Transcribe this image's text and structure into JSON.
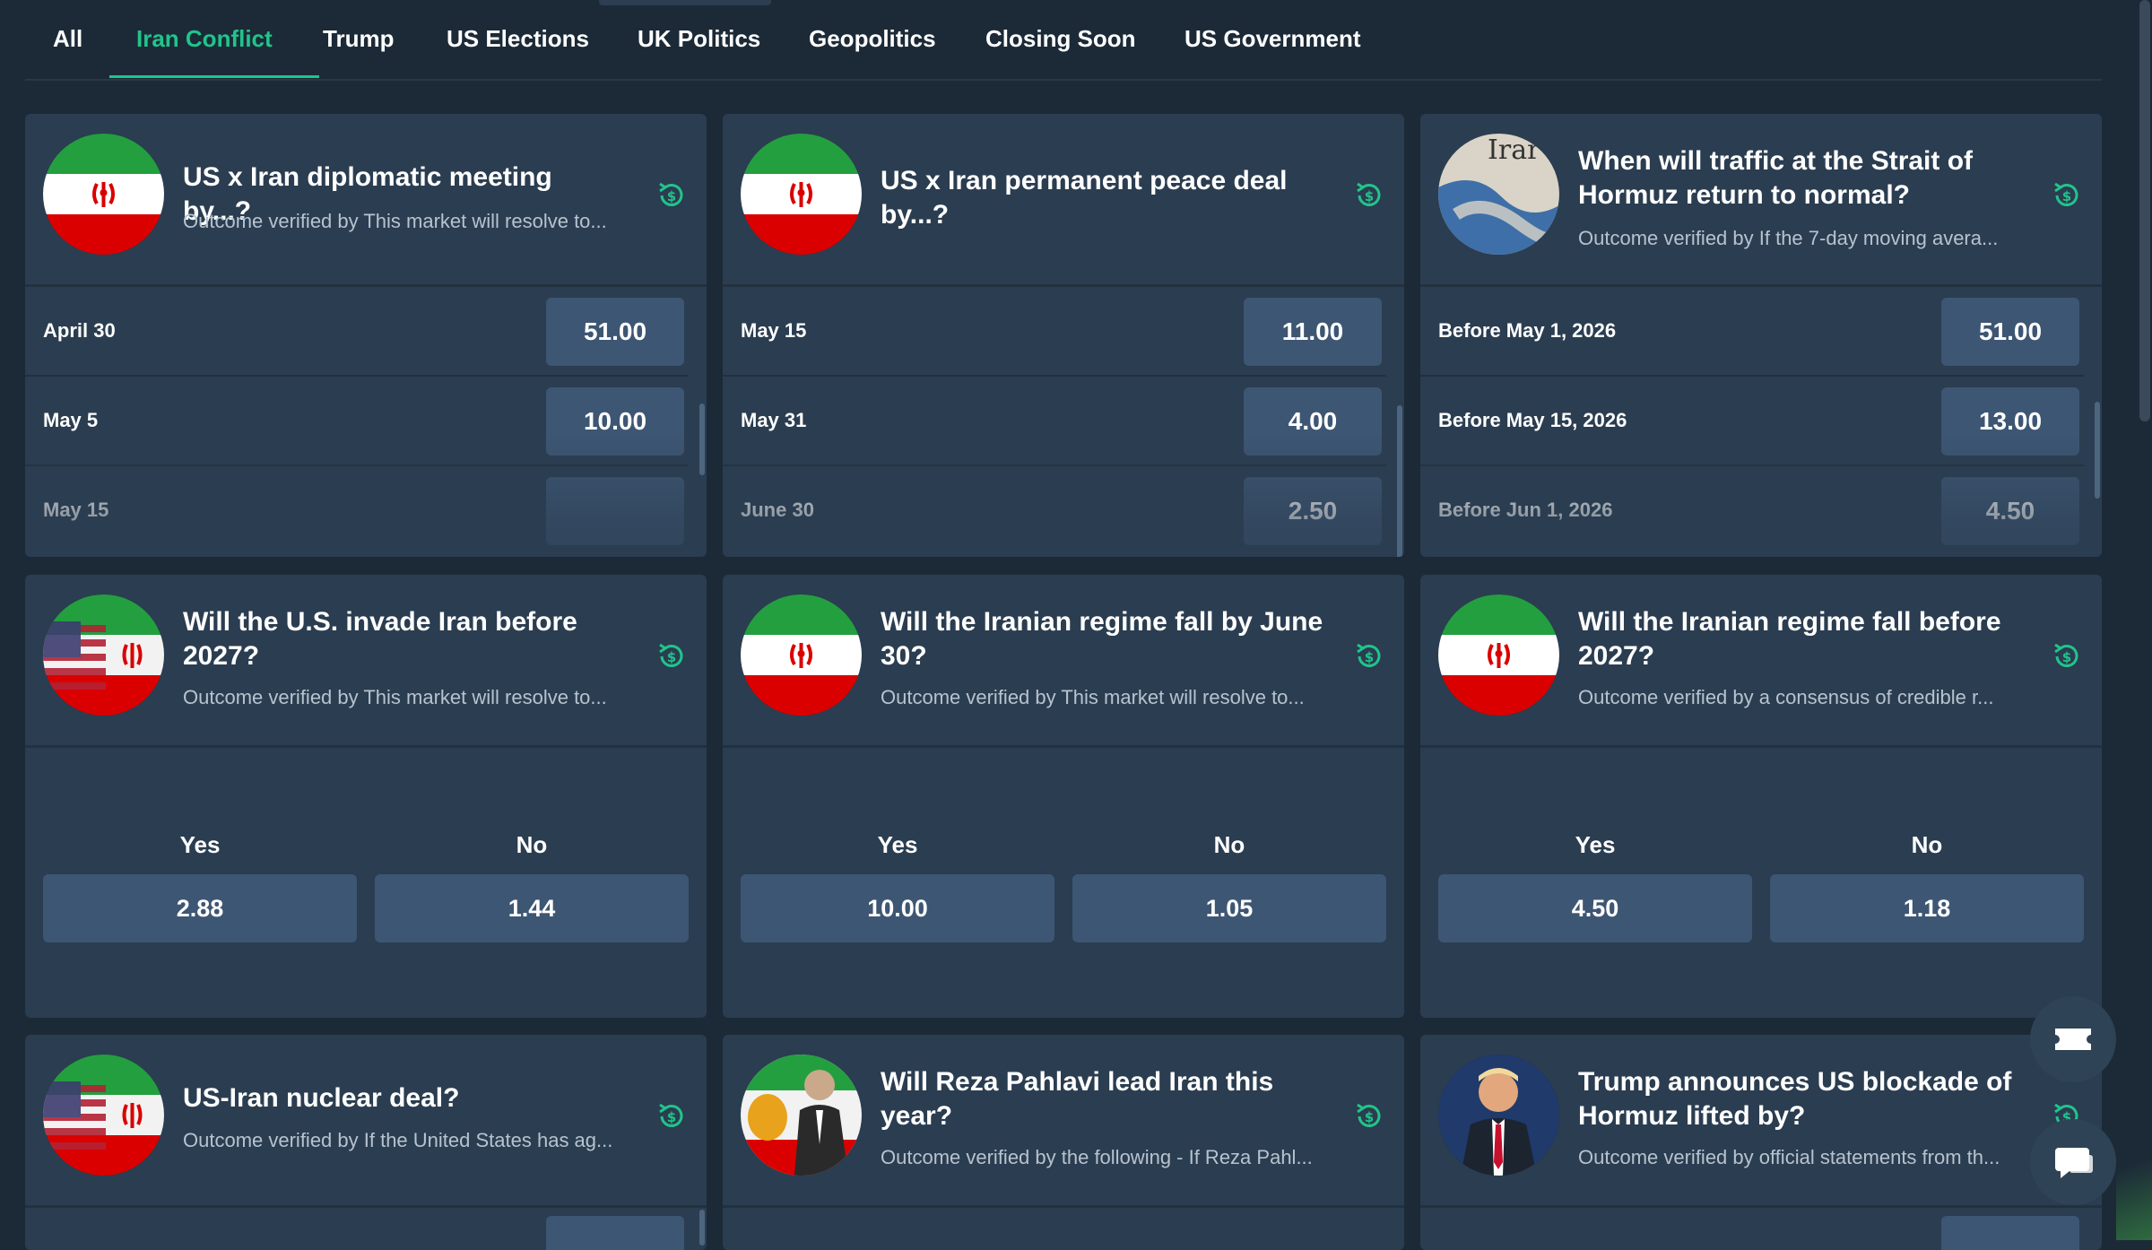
{
  "tabs": [
    {
      "label": "All",
      "active": false
    },
    {
      "label": "Iran Conflict",
      "active": true
    },
    {
      "label": "Trump",
      "active": false
    },
    {
      "label": "US Elections",
      "active": false
    },
    {
      "label": "UK Politics",
      "active": false
    },
    {
      "label": "Geopolitics",
      "active": false
    },
    {
      "label": "Closing Soon",
      "active": false
    },
    {
      "label": "US Government",
      "active": false
    }
  ],
  "accent_color": "#21c48b",
  "cards": [
    {
      "title": "US x Iran diplomatic meeting by...?",
      "subtitle": "Outcome verified by This market will resolve to...",
      "image": "iran-flag",
      "rows": [
        {
          "label": "April 30",
          "odds": "51.00"
        },
        {
          "label": "May 5",
          "odds": "10.00"
        },
        {
          "label": "May 15",
          "odds": ""
        }
      ]
    },
    {
      "title": "US x Iran permanent peace deal by...?",
      "subtitle": "",
      "image": "iran-flag",
      "rows": [
        {
          "label": "May 15",
          "odds": "11.00"
        },
        {
          "label": "May 31",
          "odds": "4.00"
        },
        {
          "label": "June 30",
          "odds": "2.50"
        }
      ]
    },
    {
      "title": "When will traffic at the Strait of Hormuz return to normal?",
      "subtitle": "Outcome verified by If the 7-day moving avera...",
      "image": "strait-map",
      "rows": [
        {
          "label": "Before May 1, 2026",
          "odds": "51.00"
        },
        {
          "label": "Before May 15, 2026",
          "odds": "13.00"
        },
        {
          "label": "Before Jun 1, 2026",
          "odds": "4.50"
        }
      ]
    },
    {
      "title": "Will the U.S. invade Iran before 2027?",
      "subtitle": "Outcome verified by This market will resolve to...",
      "image": "us-iran-flag",
      "yes_label": "Yes",
      "no_label": "No",
      "yes_odds": "2.88",
      "no_odds": "1.44"
    },
    {
      "title": "Will the Iranian regime fall by June 30?",
      "subtitle": "Outcome verified by This market will resolve to...",
      "image": "iran-flag",
      "yes_label": "Yes",
      "no_label": "No",
      "yes_odds": "10.00",
      "no_odds": "1.05"
    },
    {
      "title": "Will the Iranian regime fall before 2027?",
      "subtitle": "Outcome verified by a consensus of credible r...",
      "image": "iran-flag",
      "yes_label": "Yes",
      "no_label": "No",
      "yes_odds": "4.50",
      "no_odds": "1.18"
    },
    {
      "title": "US-Iran nuclear deal?",
      "subtitle": "Outcome verified by If the United States has ag...",
      "image": "us-iran-flag"
    },
    {
      "title": "Will Reza Pahlavi lead Iran this year?",
      "subtitle": "Outcome verified by the following - If Reza Pahl...",
      "image": "pahlavi-photo"
    },
    {
      "title": "Trump announces US blockade of Hormuz lifted by?",
      "subtitle": "Outcome verified by official statements from th...",
      "image": "trump-photo"
    }
  ],
  "icons": {
    "market": "cash-refresh-icon",
    "betslip": "ticket-icon",
    "chat": "chat-icon"
  }
}
